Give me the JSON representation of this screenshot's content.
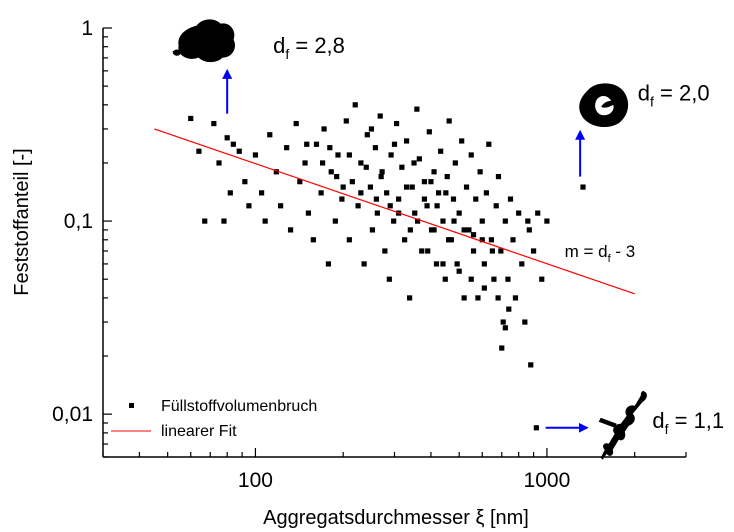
{
  "chart_data": {
    "type": "scatter",
    "title": "",
    "xlabel": "Aggregatsdurchmesser ξ [nm]",
    "ylabel": "Feststoffanteil [-]",
    "x_scale": "log",
    "y_scale": "log",
    "xlim": [
      30,
      3000
    ],
    "ylim": [
      0.006,
      1
    ],
    "x_ticks": [
      100,
      1000
    ],
    "x_tick_labels": [
      "100",
      "1000"
    ],
    "y_ticks": [
      0.01,
      0.1,
      1
    ],
    "y_tick_labels": [
      "0,01",
      "0,1",
      "1"
    ],
    "grid": false,
    "legend_position": "bottom-left",
    "colors": {
      "points": "#000000",
      "fit": "#ff0000",
      "arrows": "#0000ff"
    },
    "series": [
      {
        "name": "Füllstoffvolumenbruch",
        "kind": "scatter",
        "points": [
          [
            60,
            0.34
          ],
          [
            64,
            0.23
          ],
          [
            67,
            0.1
          ],
          [
            72,
            0.32
          ],
          [
            75,
            0.2
          ],
          [
            78,
            0.1
          ],
          [
            80,
            0.27
          ],
          [
            82,
            0.14
          ],
          [
            84,
            0.25
          ],
          [
            88,
            0.23
          ],
          [
            92,
            0.16
          ],
          [
            95,
            0.12
          ],
          [
            100,
            0.22
          ],
          [
            105,
            0.14
          ],
          [
            108,
            0.1
          ],
          [
            112,
            0.28
          ],
          [
            118,
            0.18
          ],
          [
            122,
            0.12
          ],
          [
            128,
            0.24
          ],
          [
            132,
            0.09
          ],
          [
            138,
            0.32
          ],
          [
            142,
            0.16
          ],
          [
            148,
            0.2
          ],
          [
            152,
            0.11
          ],
          [
            158,
            0.08
          ],
          [
            162,
            0.25
          ],
          [
            168,
            0.14
          ],
          [
            172,
            0.3
          ],
          [
            178,
            0.06
          ],
          [
            182,
            0.18
          ],
          [
            188,
            0.1
          ],
          [
            192,
            0.22
          ],
          [
            198,
            0.13
          ],
          [
            205,
            0.33
          ],
          [
            210,
            0.08
          ],
          [
            215,
            0.16
          ],
          [
            220,
            0.4
          ],
          [
            225,
            0.12
          ],
          [
            230,
            0.2
          ],
          [
            236,
            0.06
          ],
          [
            242,
            0.28
          ],
          [
            248,
            0.15
          ],
          [
            252,
            0.09
          ],
          [
            258,
            0.24
          ],
          [
            262,
            0.11
          ],
          [
            268,
            0.35
          ],
          [
            272,
            0.18
          ],
          [
            278,
            0.07
          ],
          [
            282,
            0.14
          ],
          [
            288,
            0.05
          ],
          [
            292,
            0.22
          ],
          [
            298,
            0.1
          ],
          [
            305,
            0.32
          ],
          [
            310,
            0.13
          ],
          [
            318,
            0.19
          ],
          [
            325,
            0.08
          ],
          [
            330,
            0.26
          ],
          [
            338,
            0.04
          ],
          [
            345,
            0.15
          ],
          [
            352,
            0.11
          ],
          [
            358,
            0.38
          ],
          [
            365,
            0.21
          ],
          [
            372,
            0.07
          ],
          [
            380,
            0.16
          ],
          [
            388,
            0.12
          ],
          [
            395,
            0.29
          ],
          [
            402,
            0.09
          ],
          [
            410,
            0.18
          ],
          [
            418,
            0.06
          ],
          [
            425,
            0.14
          ],
          [
            432,
            0.23
          ],
          [
            440,
            0.1
          ],
          [
            448,
            0.05
          ],
          [
            455,
            0.17
          ],
          [
            462,
            0.33
          ],
          [
            470,
            0.08
          ],
          [
            478,
            0.13
          ],
          [
            485,
            0.2
          ],
          [
            492,
            0.06
          ],
          [
            500,
            0.11
          ],
          [
            510,
            0.26
          ],
          [
            520,
            0.04
          ],
          [
            530,
            0.15
          ],
          [
            540,
            0.09
          ],
          [
            550,
            0.22
          ],
          [
            560,
            0.07
          ],
          [
            570,
            0.13
          ],
          [
            580,
            0.04
          ],
          [
            590,
            0.18
          ],
          [
            600,
            0.1
          ],
          [
            610,
            0.06
          ],
          [
            620,
            0.14
          ],
          [
            632,
            0.25
          ],
          [
            645,
            0.08
          ],
          [
            658,
            0.05
          ],
          [
            670,
            0.12
          ],
          [
            682,
            0.17
          ],
          [
            695,
            0.07
          ],
          [
            708,
            0.03
          ],
          [
            720,
            0.1
          ],
          [
            735,
            0.05
          ],
          [
            750,
            0.13
          ],
          [
            765,
            0.08
          ],
          [
            780,
            0.04
          ],
          [
            800,
            0.11
          ],
          [
            820,
            0.06
          ],
          [
            840,
            0.03
          ],
          [
            870,
            0.09
          ],
          [
            900,
            0.07
          ],
          [
            930,
            0.11
          ],
          [
            960,
            0.05
          ],
          [
            880,
            0.018
          ],
          [
            920,
            0.0085
          ],
          [
            1330,
            0.15
          ],
          [
            1000,
            0.1
          ],
          [
            860,
            0.1
          ],
          [
            720,
            0.028
          ],
          [
            700,
            0.022
          ],
          [
            250,
            0.3
          ],
          [
            300,
            0.25
          ],
          [
            350,
            0.2
          ],
          [
            400,
            0.16
          ],
          [
            450,
            0.14
          ],
          [
            150,
            0.25
          ],
          [
            180,
            0.24
          ],
          [
            210,
            0.22
          ],
          [
            240,
            0.19
          ],
          [
            270,
            0.17
          ],
          [
            330,
            0.15
          ],
          [
            380,
            0.13
          ],
          [
            420,
            0.12
          ],
          [
            480,
            0.1
          ],
          [
            520,
            0.09
          ],
          [
            560,
            0.085
          ],
          [
            600,
            0.08
          ],
          [
            650,
            0.07
          ],
          [
            200,
            0.15
          ],
          [
            260,
            0.13
          ],
          [
            310,
            0.11
          ],
          [
            360,
            0.1
          ],
          [
            410,
            0.09
          ],
          [
            460,
            0.08
          ],
          [
            170,
            0.2
          ],
          [
            190,
            0.17
          ],
          [
            230,
            0.14
          ],
          [
            290,
            0.12
          ],
          [
            340,
            0.09
          ],
          [
            390,
            0.07
          ],
          [
            440,
            0.06
          ],
          [
            500,
            0.055
          ],
          [
            550,
            0.05
          ],
          [
            610,
            0.045
          ],
          [
            680,
            0.04
          ],
          [
            740,
            0.035
          ]
        ]
      },
      {
        "name": "linearer Fit",
        "kind": "line",
        "points": [
          [
            45,
            0.3
          ],
          [
            2000,
            0.042
          ]
        ]
      }
    ],
    "annotations": [
      {
        "base": "d",
        "sub": "f",
        "suffix": " = 2,8",
        "shape": "compact",
        "label_at": [
          115,
          0.74
        ],
        "shape_at": [
          68,
          0.85
        ],
        "arrow": {
          "from": [
            80,
            0.36
          ],
          "to": [
            80,
            0.6
          ]
        }
      },
      {
        "base": "d",
        "sub": "f",
        "suffix": " = 2,0",
        "shape": "ring",
        "label_at": [
          2050,
          0.42
        ],
        "shape_at": [
          1560,
          0.4
        ],
        "arrow": {
          "from": [
            1300,
            0.17
          ],
          "to": [
            1300,
            0.29
          ]
        }
      },
      {
        "base": "m = d",
        "sub": "f",
        "suffix": " - 3",
        "shape": "none",
        "label_at": [
          1150,
          0.065
        ]
      },
      {
        "base": "d",
        "sub": "f",
        "suffix": " = 1,1",
        "shape": "branched",
        "label_at": [
          2300,
          0.0085
        ],
        "shape_at": [
          1820,
          0.0085
        ],
        "arrow": {
          "from": [
            990,
            0.0085
          ],
          "to": [
            1370,
            0.0085
          ]
        }
      }
    ]
  }
}
